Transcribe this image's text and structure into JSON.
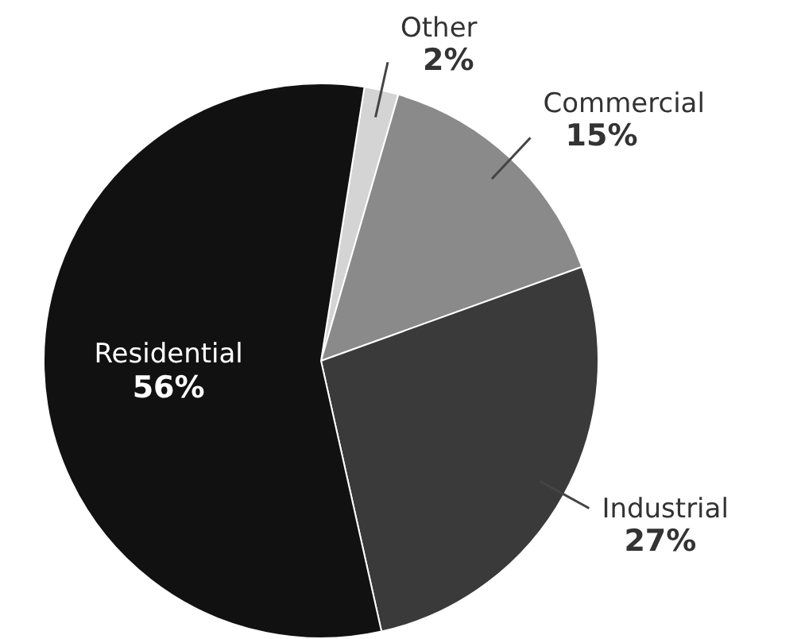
{
  "chart_data": {
    "type": "pie",
    "categories": [
      "Other",
      "Commercial",
      "Industrial",
      "Residential"
    ],
    "values": [
      2,
      15,
      27,
      56
    ],
    "colors": [
      "#d4d4d4",
      "#8a8a8a",
      "#3a3a3a",
      "#111111"
    ],
    "value_labels": [
      "2%",
      "15%",
      "27%",
      "56%"
    ],
    "legend": false
  }
}
